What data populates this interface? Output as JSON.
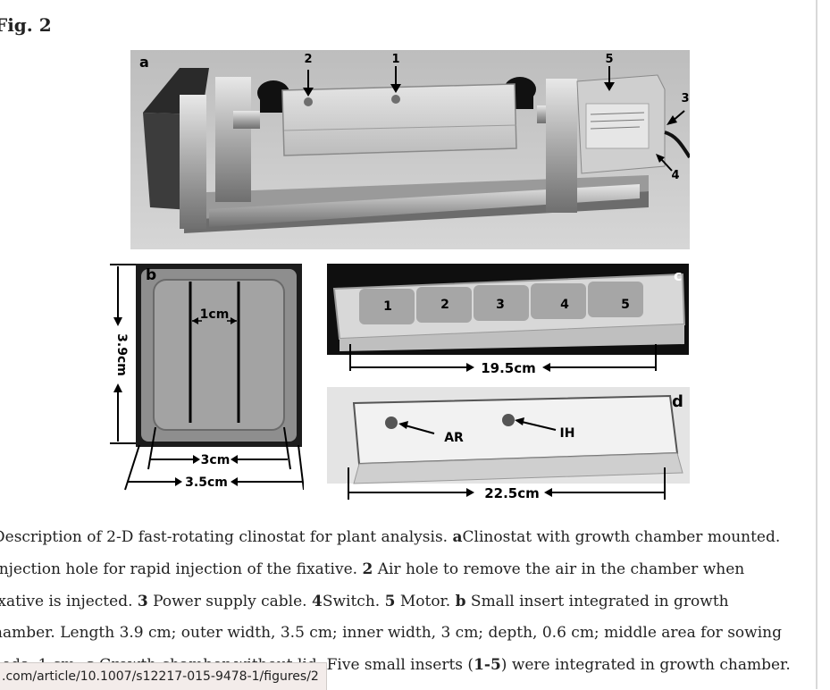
{
  "figure_title": "Fig. 2",
  "panels": {
    "a": {
      "letter": "a",
      "callouts": [
        "2",
        "1",
        "5",
        "3",
        "4"
      ]
    },
    "b": {
      "letter": "b",
      "height_label": "3.9cm",
      "gap_label": "1cm",
      "inner_label": "3cm",
      "outer_label": "3.5cm"
    },
    "c": {
      "letter": "c",
      "insert_numbers": [
        "1",
        "2",
        "3",
        "4",
        "5"
      ],
      "length_label": "19.5cm"
    },
    "d": {
      "letter": "d",
      "label_ar": "AR",
      "label_ih": "IH",
      "length_label": "22.5cm"
    }
  },
  "caption": {
    "line1_a": "Description of 2-D fast-rotating clinostat for plant analysis. ",
    "line1_b": "a",
    "line1_c": "Clinostat with growth chamber mounted.",
    "line2_a": " Injection hole for rapid injection of the fixative. ",
    "line2_b": "2",
    "line2_c": " Air hole to remove the air in the chamber when",
    "line3_a": "ixative is injected. ",
    "line3_b": "3",
    "line3_c": " Power supply cable. ",
    "line3_d": "4",
    "line3_e": "Switch. ",
    "line3_f": "5",
    "line3_g": " Motor. ",
    "line3_h": "b",
    "line3_i": " Small insert integrated in growth",
    "line4": "hamber. Length 3.9 cm; outer width, 3.5 cm; inner width, 3 cm; depth, 0.6 cm; middle area for sowing",
    "line5_a": "eeds, 1 cm. ",
    "line5_b": "c",
    "line5_c": " Growth chamber without lid. Five small inserts (",
    "line5_d": "1-5",
    "line5_e": ") were integrated in growth chamber."
  },
  "status_bar": {
    "url": ".com/article/10.1007/s12217-015-9478-1/figures/2"
  }
}
